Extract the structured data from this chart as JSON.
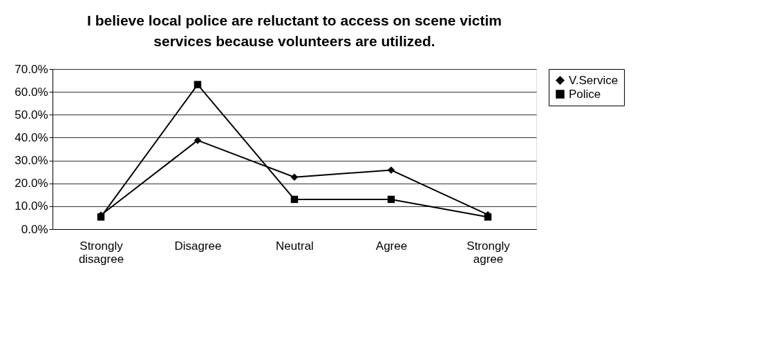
{
  "chart_data": {
    "type": "line",
    "title": "I believe local police are reluctant to access on scene victim services because volunteers are utilized.",
    "categories": [
      "Strongly disagree",
      "Disagree",
      "Neutral",
      "Agree",
      "Strongly agree"
    ],
    "series": [
      {
        "name": "V.Service",
        "color": "#000000",
        "marker": "diamond",
        "values": [
          6.1,
          38.8,
          22.7,
          25.8,
          6.3
        ]
      },
      {
        "name": "Police",
        "color": "#000000",
        "marker": "square",
        "values": [
          5.3,
          63.2,
          13.0,
          13.0,
          5.3
        ]
      }
    ],
    "ylim": [
      0,
      70
    ],
    "yticks": [
      {
        "value": 0,
        "label": "0.0%"
      },
      {
        "value": 10,
        "label": "10.0%"
      },
      {
        "value": 20,
        "label": "20.0%"
      },
      {
        "value": 30,
        "label": "30.0%"
      },
      {
        "value": 40,
        "label": "40.0%"
      },
      {
        "value": 50,
        "label": "50.0%"
      },
      {
        "value": 60,
        "label": "60.0%"
      },
      {
        "value": 70,
        "label": "70.0%"
      }
    ],
    "grid": "y",
    "legend": "right",
    "line_style": "solid"
  }
}
